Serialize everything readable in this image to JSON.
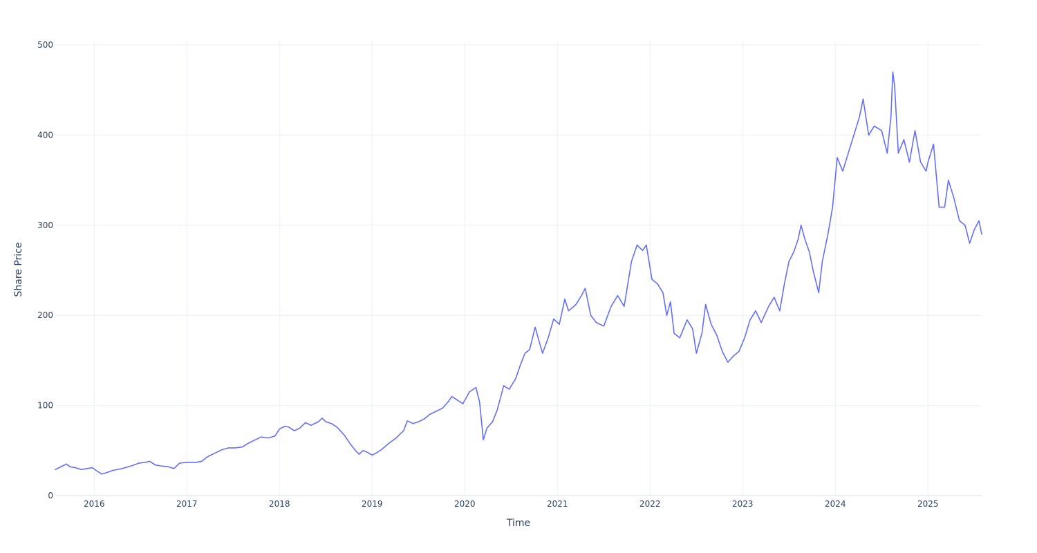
{
  "chart_data": {
    "type": "line",
    "title": "",
    "xlabel": "Time",
    "ylabel": "Share Price",
    "x_range": [
      2015.58,
      2025.58
    ],
    "ylim": [
      0,
      500
    ],
    "y_ticks": [
      0,
      100,
      200,
      300,
      400,
      500
    ],
    "x_ticks": [
      {
        "value": 2016,
        "label": "2016"
      },
      {
        "value": 2017,
        "label": "2017"
      },
      {
        "value": 2018,
        "label": "2018"
      },
      {
        "value": 2019,
        "label": "2019"
      },
      {
        "value": 2020,
        "label": "2020"
      },
      {
        "value": 2021,
        "label": "2021"
      },
      {
        "value": 2022,
        "label": "2022"
      },
      {
        "value": 2023,
        "label": "2023"
      },
      {
        "value": 2024,
        "label": "2024"
      },
      {
        "value": 2025,
        "label": "2025"
      }
    ],
    "grid": true,
    "legend": "none",
    "line_color": "#636efa",
    "series": [
      {
        "name": "Share Price",
        "points": [
          [
            2015.58,
            29
          ],
          [
            2015.62,
            31
          ],
          [
            2015.66,
            33
          ],
          [
            2015.7,
            35
          ],
          [
            2015.74,
            32
          ],
          [
            2015.8,
            31
          ],
          [
            2015.86,
            29
          ],
          [
            2015.92,
            30
          ],
          [
            2015.98,
            31
          ],
          [
            2016.02,
            28
          ],
          [
            2016.08,
            24
          ],
          [
            2016.12,
            25
          ],
          [
            2016.2,
            28
          ],
          [
            2016.3,
            30
          ],
          [
            2016.4,
            33
          ],
          [
            2016.48,
            36
          ],
          [
            2016.55,
            37
          ],
          [
            2016.6,
            38
          ],
          [
            2016.66,
            34
          ],
          [
            2016.72,
            33
          ],
          [
            2016.8,
            32
          ],
          [
            2016.86,
            30
          ],
          [
            2016.92,
            36
          ],
          [
            2017.0,
            37
          ],
          [
            2017.1,
            37
          ],
          [
            2017.16,
            38
          ],
          [
            2017.22,
            43
          ],
          [
            2017.3,
            47
          ],
          [
            2017.38,
            51
          ],
          [
            2017.45,
            53
          ],
          [
            2017.52,
            53
          ],
          [
            2017.6,
            54
          ],
          [
            2017.66,
            58
          ],
          [
            2017.74,
            62
          ],
          [
            2017.8,
            65
          ],
          [
            2017.88,
            64
          ],
          [
            2017.95,
            66
          ],
          [
            2018.0,
            74
          ],
          [
            2018.06,
            77
          ],
          [
            2018.1,
            76
          ],
          [
            2018.16,
            72
          ],
          [
            2018.22,
            75
          ],
          [
            2018.28,
            81
          ],
          [
            2018.34,
            78
          ],
          [
            2018.42,
            82
          ],
          [
            2018.46,
            86
          ],
          [
            2018.5,
            82
          ],
          [
            2018.56,
            80
          ],
          [
            2018.62,
            76
          ],
          [
            2018.7,
            67
          ],
          [
            2018.76,
            58
          ],
          [
            2018.82,
            50
          ],
          [
            2018.86,
            46
          ],
          [
            2018.9,
            50
          ],
          [
            2018.95,
            48
          ],
          [
            2019.0,
            45
          ],
          [
            2019.04,
            47
          ],
          [
            2019.1,
            51
          ],
          [
            2019.18,
            58
          ],
          [
            2019.26,
            64
          ],
          [
            2019.34,
            72
          ],
          [
            2019.38,
            83
          ],
          [
            2019.44,
            80
          ],
          [
            2019.5,
            82
          ],
          [
            2019.56,
            85
          ],
          [
            2019.62,
            90
          ],
          [
            2019.7,
            94
          ],
          [
            2019.76,
            97
          ],
          [
            2019.82,
            104
          ],
          [
            2019.86,
            110
          ],
          [
            2019.92,
            106
          ],
          [
            2019.98,
            102
          ],
          [
            2020.05,
            115
          ],
          [
            2020.12,
            120
          ],
          [
            2020.16,
            104
          ],
          [
            2020.2,
            62
          ],
          [
            2020.24,
            75
          ],
          [
            2020.3,
            82
          ],
          [
            2020.35,
            95
          ],
          [
            2020.42,
            122
          ],
          [
            2020.48,
            118
          ],
          [
            2020.55,
            130
          ],
          [
            2020.6,
            145
          ],
          [
            2020.65,
            158
          ],
          [
            2020.7,
            162
          ],
          [
            2020.76,
            187
          ],
          [
            2020.8,
            172
          ],
          [
            2020.84,
            158
          ],
          [
            2020.9,
            175
          ],
          [
            2020.96,
            196
          ],
          [
            2021.02,
            190
          ],
          [
            2021.08,
            218
          ],
          [
            2021.12,
            205
          ],
          [
            2021.2,
            212
          ],
          [
            2021.26,
            222
          ],
          [
            2021.3,
            230
          ],
          [
            2021.36,
            200
          ],
          [
            2021.42,
            192
          ],
          [
            2021.5,
            188
          ],
          [
            2021.58,
            210
          ],
          [
            2021.65,
            222
          ],
          [
            2021.72,
            210
          ],
          [
            2021.8,
            260
          ],
          [
            2021.86,
            278
          ],
          [
            2021.92,
            272
          ],
          [
            2021.96,
            278
          ],
          [
            2022.02,
            240
          ],
          [
            2022.08,
            235
          ],
          [
            2022.14,
            225
          ],
          [
            2022.18,
            200
          ],
          [
            2022.22,
            215
          ],
          [
            2022.26,
            180
          ],
          [
            2022.32,
            175
          ],
          [
            2022.4,
            195
          ],
          [
            2022.46,
            185
          ],
          [
            2022.5,
            158
          ],
          [
            2022.56,
            180
          ],
          [
            2022.6,
            212
          ],
          [
            2022.66,
            190
          ],
          [
            2022.72,
            178
          ],
          [
            2022.78,
            160
          ],
          [
            2022.84,
            148
          ],
          [
            2022.9,
            155
          ],
          [
            2022.96,
            160
          ],
          [
            2023.02,
            175
          ],
          [
            2023.08,
            195
          ],
          [
            2023.14,
            205
          ],
          [
            2023.2,
            192
          ],
          [
            2023.28,
            210
          ],
          [
            2023.34,
            220
          ],
          [
            2023.4,
            205
          ],
          [
            2023.45,
            235
          ],
          [
            2023.5,
            260
          ],
          [
            2023.55,
            270
          ],
          [
            2023.6,
            285
          ],
          [
            2023.63,
            300
          ],
          [
            2023.67,
            285
          ],
          [
            2023.72,
            270
          ],
          [
            2023.76,
            250
          ],
          [
            2023.82,
            225
          ],
          [
            2023.86,
            260
          ],
          [
            2023.92,
            290
          ],
          [
            2023.97,
            320
          ],
          [
            2024.02,
            375
          ],
          [
            2024.08,
            360
          ],
          [
            2024.14,
            380
          ],
          [
            2024.2,
            400
          ],
          [
            2024.26,
            420
          ],
          [
            2024.3,
            440
          ],
          [
            2024.36,
            400
          ],
          [
            2024.42,
            410
          ],
          [
            2024.5,
            405
          ],
          [
            2024.56,
            380
          ],
          [
            2024.6,
            420
          ],
          [
            2024.62,
            470
          ],
          [
            2024.64,
            455
          ],
          [
            2024.68,
            380
          ],
          [
            2024.74,
            395
          ],
          [
            2024.8,
            370
          ],
          [
            2024.86,
            405
          ],
          [
            2024.92,
            370
          ],
          [
            2024.98,
            360
          ],
          [
            2025.0,
            370
          ],
          [
            2025.06,
            390
          ],
          [
            2025.12,
            320
          ],
          [
            2025.18,
            320
          ],
          [
            2025.22,
            350
          ],
          [
            2025.28,
            330
          ],
          [
            2025.34,
            305
          ],
          [
            2025.4,
            300
          ],
          [
            2025.45,
            280
          ],
          [
            2025.5,
            295
          ],
          [
            2025.55,
            305
          ],
          [
            2025.58,
            290
          ]
        ]
      }
    ]
  }
}
